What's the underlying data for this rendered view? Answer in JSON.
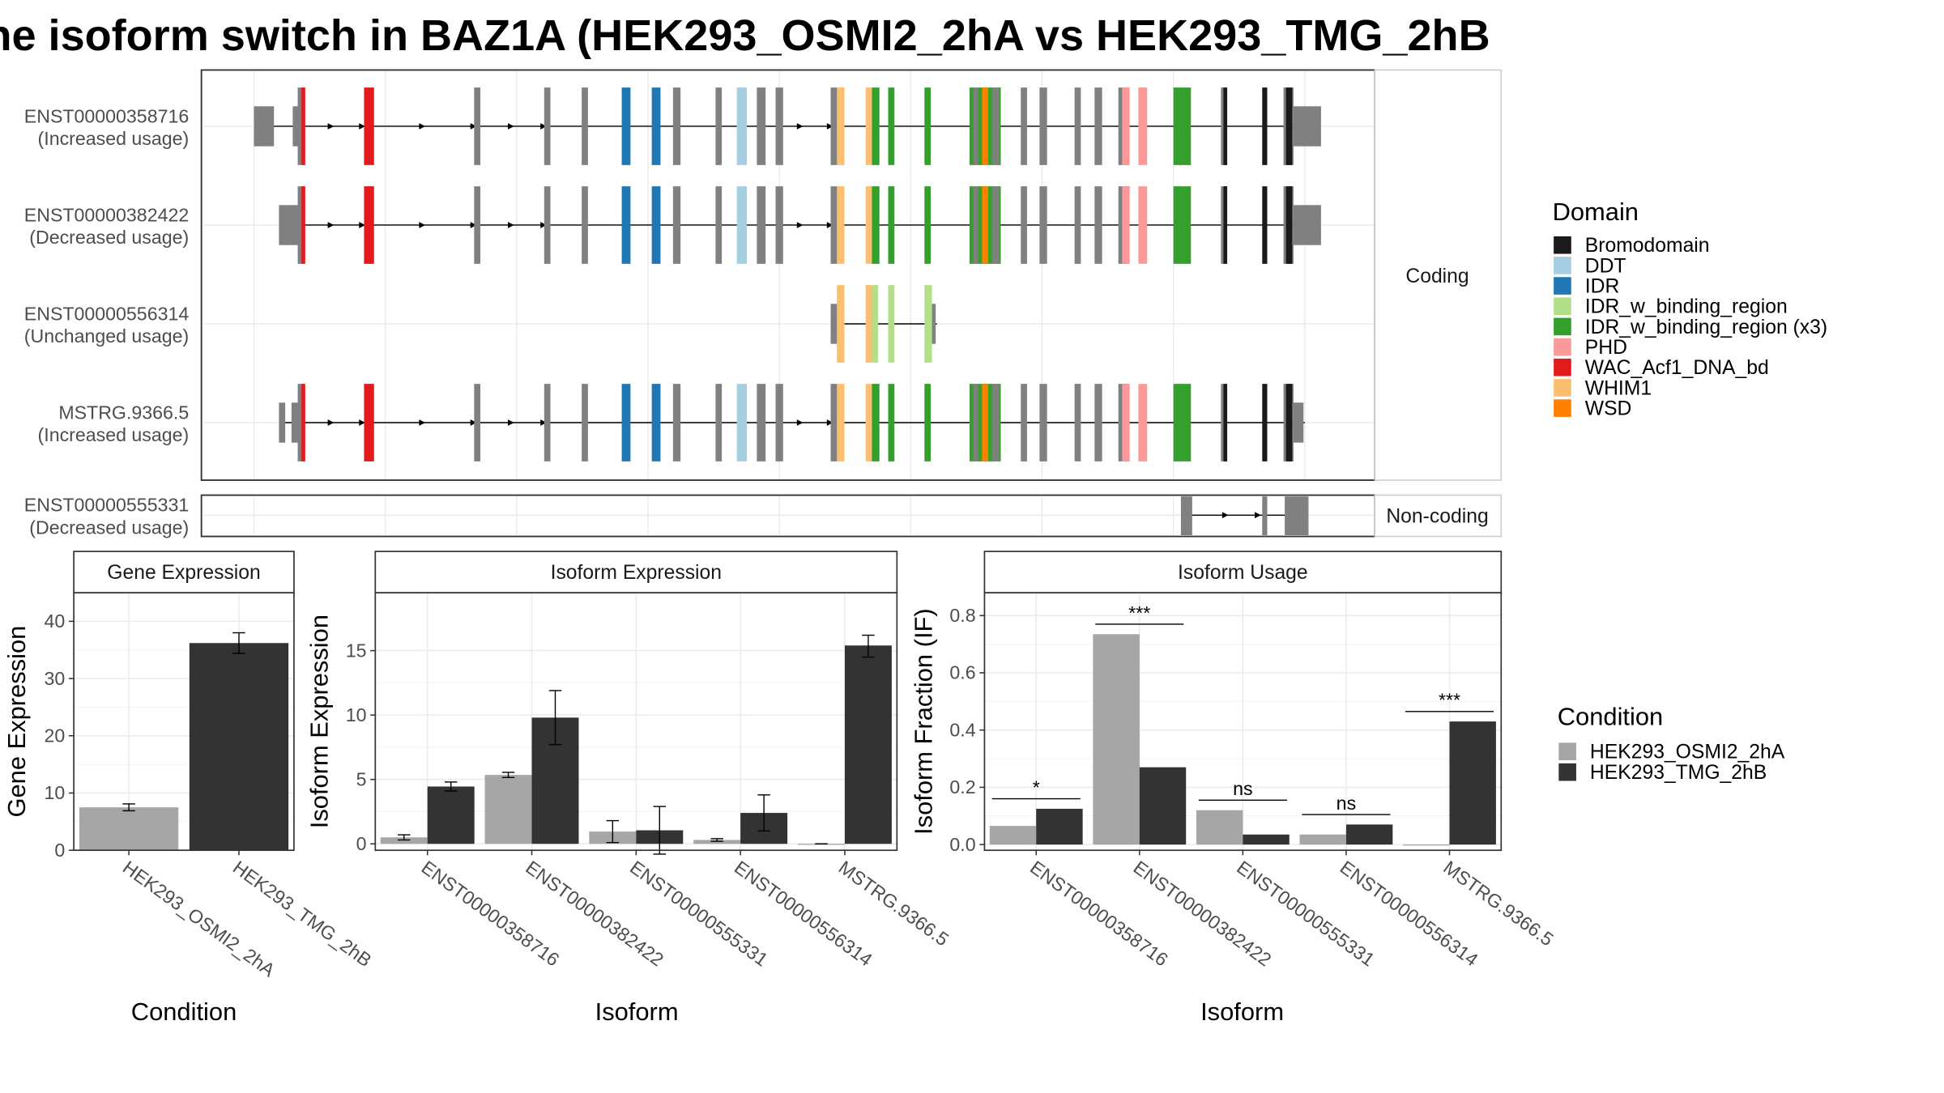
{
  "title": "he isoform switch in BAZ1A (HEK293_OSMI2_2hA vs HEK293_TMG_2hB",
  "structure": {
    "facets": [
      "Coding",
      "Non-coding"
    ],
    "transcripts": [
      {
        "name": "ENST00000358716",
        "usage": "(Increased usage)"
      },
      {
        "name": "ENST00000382422",
        "usage": "(Decreased usage)"
      },
      {
        "name": "ENST00000556314",
        "usage": "(Unchanged usage)"
      },
      {
        "name": "MSTRG.9366.5",
        "usage": "(Increased usage)"
      },
      {
        "name": "ENST00000555331",
        "usage": "(Decreased usage)"
      }
    ]
  },
  "domain_legend": {
    "title": "Domain",
    "items": [
      {
        "label": "Bromodomain",
        "color": "#1a1a1a"
      },
      {
        "label": "DDT",
        "color": "#a6cee3"
      },
      {
        "label": "IDR",
        "color": "#1f78b4"
      },
      {
        "label": "IDR_w_binding_region",
        "color": "#b2df8a"
      },
      {
        "label": "IDR_w_binding_region (x3)",
        "color": "#33a02c"
      },
      {
        "label": "PHD",
        "color": "#fb9a99"
      },
      {
        "label": "WAC_Acf1_DNA_bd",
        "color": "#e31a1c"
      },
      {
        "label": "WHIM1",
        "color": "#fdbf6f"
      },
      {
        "label": "WSD",
        "color": "#ff7f00"
      }
    ]
  },
  "condition_legend": {
    "title": "Condition",
    "items": [
      {
        "label": "HEK293_OSMI2_2hA",
        "color": "#a6a6a6"
      },
      {
        "label": "HEK293_TMG_2hB",
        "color": "#333333"
      }
    ]
  },
  "chart_data": [
    {
      "type": "bar",
      "title": "Gene Expression",
      "xlabel": "Condition",
      "ylabel": "Gene Expression",
      "categories": [
        "HEK293_OSMI2_2hA",
        "HEK293_TMG_2hB"
      ],
      "values": [
        7.5,
        36.2
      ],
      "errors": [
        [
          6.9,
          8.1
        ],
        [
          34.4,
          38.0
        ]
      ],
      "ylim": [
        0,
        45
      ],
      "yticks": [
        0,
        10,
        20,
        30,
        40
      ]
    },
    {
      "type": "bar",
      "title": "Isoform Expression",
      "xlabel": "Isoform",
      "ylabel": "Isoform Expression",
      "categories": [
        "ENST00000358716",
        "ENST00000382422",
        "ENST00000555331",
        "ENST00000556314",
        "MSTRG.9366.5"
      ],
      "series": [
        {
          "name": "HEK293_OSMI2_2hA",
          "values": [
            0.5,
            5.35,
            0.95,
            0.3,
            0.0
          ],
          "errors": [
            [
              0.3,
              0.7
            ],
            [
              5.15,
              5.55
            ],
            [
              0.1,
              1.8
            ],
            [
              0.2,
              0.4
            ],
            [
              0.0,
              0.0
            ]
          ]
        },
        {
          "name": "HEK293_TMG_2hB",
          "values": [
            4.45,
            9.8,
            1.05,
            2.4,
            15.4
          ],
          "errors": [
            [
              4.1,
              4.8
            ],
            [
              7.7,
              11.9
            ],
            [
              -0.8,
              2.9
            ],
            [
              1.0,
              3.8
            ],
            [
              14.5,
              16.2
            ]
          ]
        }
      ],
      "ylim": [
        -0.5,
        19.5
      ],
      "yticks": [
        0,
        5,
        10,
        15
      ]
    },
    {
      "type": "bar",
      "title": "Isoform Usage",
      "xlabel": "Isoform",
      "ylabel": "Isoform Fraction (IF)",
      "categories": [
        "ENST00000358716",
        "ENST00000382422",
        "ENST00000555331",
        "ENST00000556314",
        "MSTRG.9366.5"
      ],
      "series": [
        {
          "name": "HEK293_OSMI2_2hA",
          "values": [
            0.065,
            0.735,
            0.12,
            0.035,
            0.0
          ]
        },
        {
          "name": "HEK293_TMG_2hB",
          "values": [
            0.125,
            0.27,
            0.035,
            0.07,
            0.43
          ]
        }
      ],
      "significance": [
        "*",
        "***",
        "ns",
        "ns",
        "***"
      ],
      "ylim": [
        -0.02,
        0.88
      ],
      "yticks": [
        0.0,
        0.2,
        0.4,
        0.6,
        0.8
      ],
      "ytick_labels": [
        "0.0",
        "0.2",
        "0.4",
        "0.6",
        "0.8"
      ]
    }
  ]
}
